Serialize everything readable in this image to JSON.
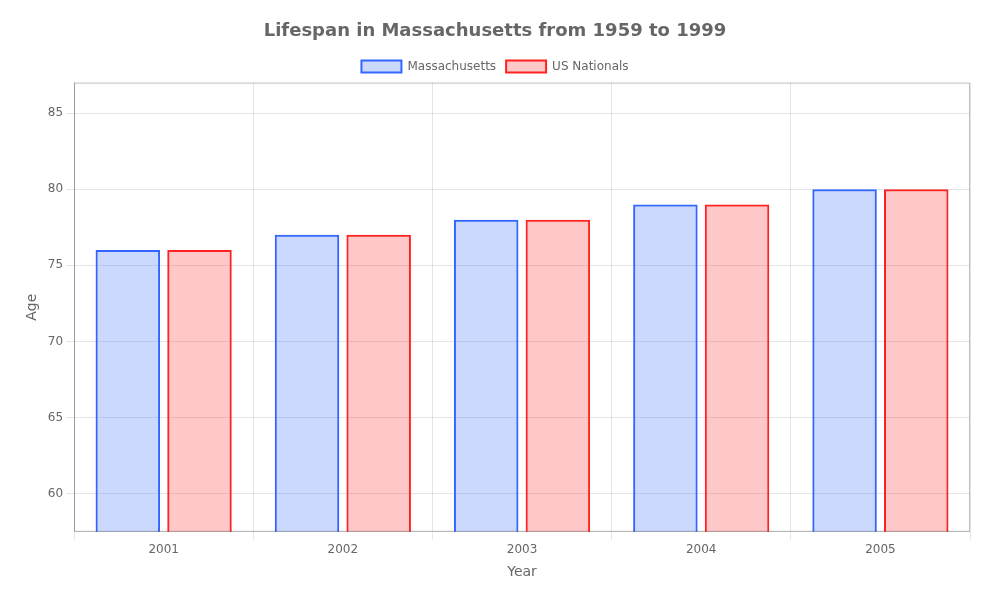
{
  "chart_data": {
    "type": "bar",
    "title": "Lifespan in Massachusetts from 1959 to 1999",
    "xlabel": "Year",
    "ylabel": "Age",
    "categories": [
      "2001",
      "2002",
      "2003",
      "2004",
      "2005"
    ],
    "series": [
      {
        "name": "Massachusetts",
        "color": "#3366ff",
        "values": [
          76,
          77,
          78,
          79,
          80
        ]
      },
      {
        "name": "US Nationals",
        "color": "#ff2222",
        "values": [
          76,
          77,
          78,
          79,
          80
        ]
      }
    ],
    "ylim": [
      57.5,
      87
    ],
    "yticks": [
      60,
      65,
      70,
      75,
      80,
      85
    ],
    "grid": true,
    "legend": "top"
  }
}
